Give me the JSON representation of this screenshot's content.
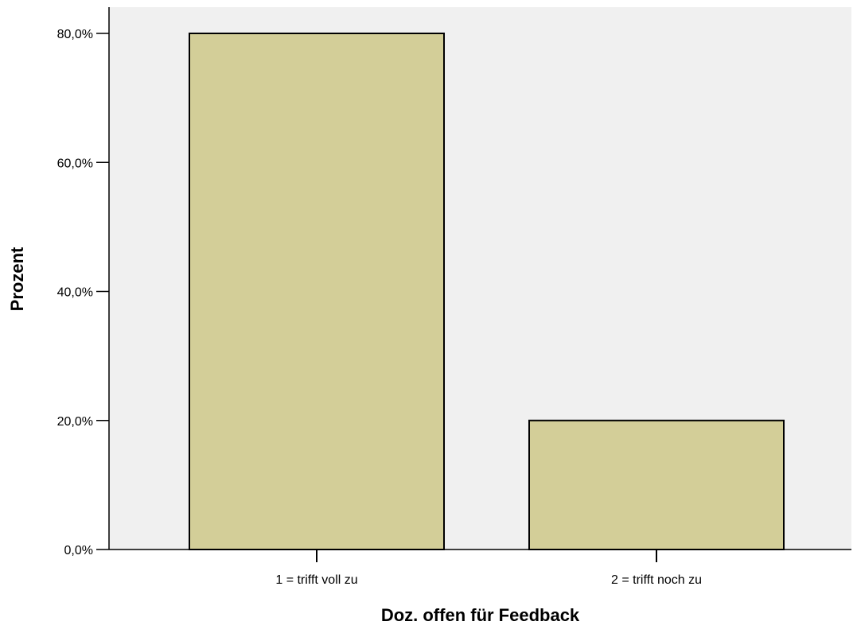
{
  "chart_data": {
    "type": "bar",
    "categories": [
      "1 = trifft voll zu",
      "2 = trifft noch zu"
    ],
    "values": [
      80.0,
      20.0
    ],
    "xlabel": "Doz. offen für Feedback",
    "ylabel": "Prozent",
    "ylim": [
      0,
      80
    ],
    "yticks": [
      0,
      20,
      40,
      60,
      80
    ],
    "ytick_labels": [
      "0,0%",
      "20,0%",
      "40,0%",
      "60,0%",
      "80,0%"
    ],
    "grid": false,
    "legend": "none",
    "colors": {
      "bar_fill": "#d3ce98",
      "bar_stroke": "#000000",
      "plot_background": "#f0f0f0",
      "axis": "#000000"
    }
  }
}
